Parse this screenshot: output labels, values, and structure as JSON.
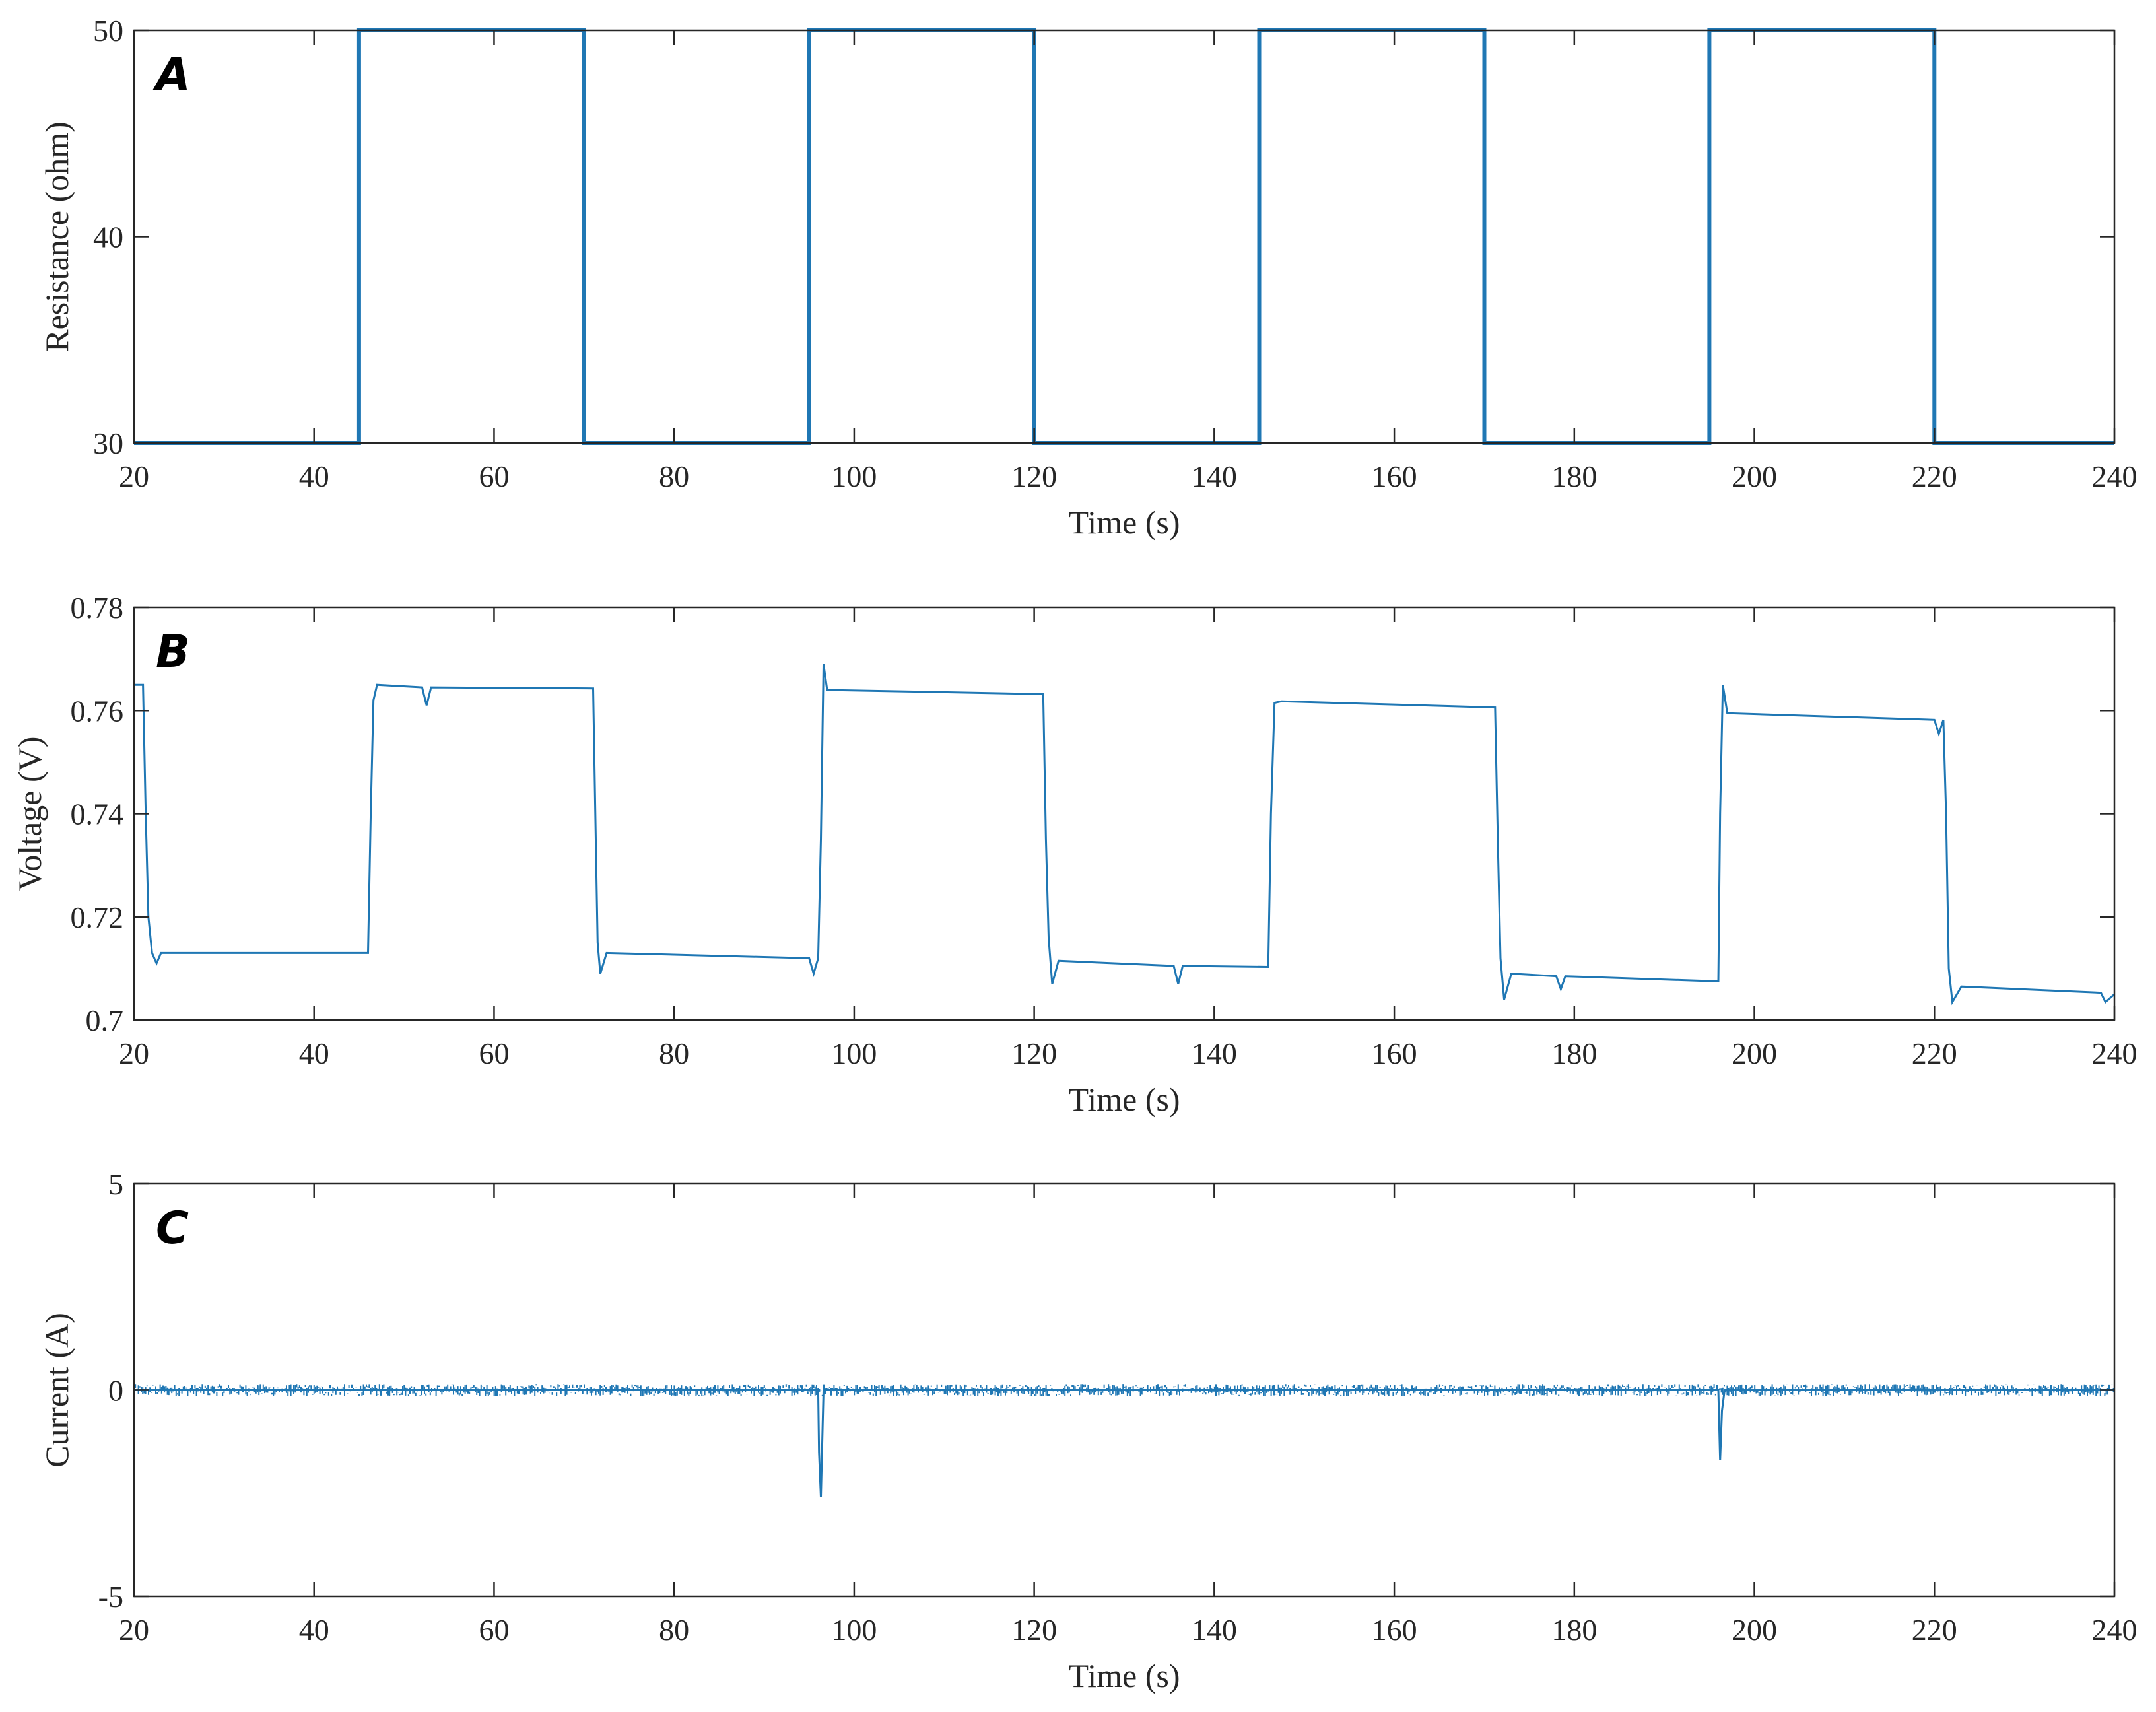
{
  "chart_data": [
    {
      "type": "line",
      "panel_label": "A",
      "xlabel": "Time (s)",
      "ylabel": "Resistance (ohm)",
      "xlim": [
        20,
        240
      ],
      "ylim": [
        30,
        50
      ],
      "xticks": [
        "20",
        "40",
        "60",
        "80",
        "100",
        "120",
        "140",
        "160",
        "180",
        "200",
        "220",
        "240"
      ],
      "yticks": [
        "30",
        "40",
        "50"
      ],
      "grid": false,
      "series": [
        {
          "color": "#1f77b4",
          "line_width": "thick",
          "x": [
            20,
            45,
            45,
            70,
            70,
            95,
            95,
            120,
            120,
            145,
            145,
            170,
            170,
            195,
            195,
            220,
            220,
            240
          ],
          "y": [
            30,
            30,
            50,
            50,
            30,
            30,
            50,
            50,
            30,
            30,
            50,
            50,
            30,
            30,
            50,
            50,
            30,
            30
          ]
        }
      ]
    },
    {
      "type": "line",
      "panel_label": "B",
      "xlabel": "Time (s)",
      "ylabel": "Voltage (V)",
      "xlim": [
        20,
        240
      ],
      "ylim": [
        0.7,
        0.78
      ],
      "xticks": [
        "20",
        "40",
        "60",
        "80",
        "100",
        "120",
        "140",
        "160",
        "180",
        "200",
        "220",
        "240"
      ],
      "yticks": [
        "0.7",
        "0.72",
        "0.74",
        "0.76",
        "0.78"
      ],
      "grid": false,
      "series": [
        {
          "color": "#1f77b4",
          "line_width": "thin",
          "x": [
            20,
            21,
            21.3,
            21.6,
            22,
            22.5,
            23,
            46,
            46.3,
            46.6,
            47,
            52,
            52.5,
            53,
            71,
            71.3,
            71.5,
            71.8,
            72.5,
            95,
            95.5,
            96,
            96.3,
            96.6,
            97,
            121,
            121.3,
            121.6,
            122,
            122.7,
            135.5,
            136,
            136.5,
            146,
            146.3,
            146.7,
            147.5,
            171.2,
            171.5,
            171.8,
            172.2,
            173,
            178,
            178.5,
            179,
            196,
            196.2,
            196.5,
            197,
            220,
            220.5,
            221,
            221.3,
            221.6,
            222,
            223,
            238.5,
            239,
            240
          ],
          "y": [
            0.765,
            0.765,
            0.74,
            0.72,
            0.713,
            0.711,
            0.713,
            0.713,
            0.74,
            0.762,
            0.765,
            0.7645,
            0.761,
            0.7645,
            0.7643,
            0.735,
            0.715,
            0.709,
            0.713,
            0.712,
            0.709,
            0.712,
            0.735,
            0.769,
            0.764,
            0.7632,
            0.735,
            0.716,
            0.707,
            0.7115,
            0.7105,
            0.707,
            0.7105,
            0.7103,
            0.74,
            0.7615,
            0.7618,
            0.7606,
            0.735,
            0.712,
            0.704,
            0.709,
            0.7085,
            0.706,
            0.7085,
            0.7075,
            0.74,
            0.765,
            0.7595,
            0.7582,
            0.7555,
            0.7582,
            0.74,
            0.71,
            0.7035,
            0.7065,
            0.7053,
            0.7035,
            0.705
          ]
        }
      ]
    },
    {
      "type": "line",
      "panel_label": "C",
      "xlabel": "Time (s)",
      "ylabel": "Current (A)",
      "xlim": [
        20,
        240
      ],
      "ylim": [
        -5,
        5
      ],
      "xticks": [
        "20",
        "40",
        "60",
        "80",
        "100",
        "120",
        "140",
        "160",
        "180",
        "200",
        "220",
        "240"
      ],
      "yticks": [
        "-5",
        "0",
        "5"
      ],
      "grid": false,
      "series": [
        {
          "color": "#1f77b4",
          "line_width": "thin",
          "x": [
            20,
            96,
            96.1,
            96.3,
            96.6,
            196,
            196.2,
            196.4,
            196.7,
            240
          ],
          "y": [
            0,
            0,
            -1.5,
            -2.6,
            0,
            0,
            -1.7,
            -0.5,
            0,
            0
          ],
          "noise_band": [
            -0.15,
            0.15
          ]
        }
      ]
    }
  ]
}
